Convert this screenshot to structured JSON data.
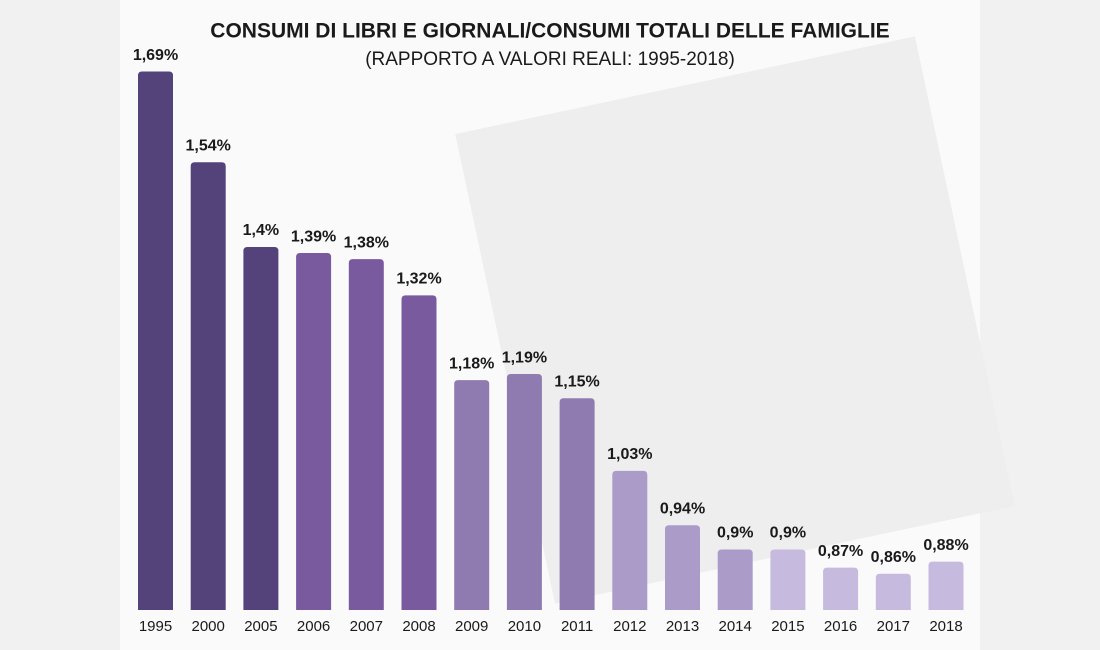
{
  "chart_data": {
    "type": "bar",
    "title": "CONSUMI DI LIBRI E GIORNALI/CONSUMI TOTALI DELLE FAMIGLIE",
    "subtitle": "(RAPPORTO A VALORI REALI: 1995-2018)",
    "categories": [
      "1995",
      "2000",
      "2005",
      "2006",
      "2007",
      "2008",
      "2009",
      "2010",
      "2011",
      "2012",
      "2013",
      "2014",
      "2015",
      "2016",
      "2017",
      "2018"
    ],
    "values": [
      1.69,
      1.54,
      1.4,
      1.39,
      1.38,
      1.32,
      1.18,
      1.19,
      1.15,
      1.03,
      0.94,
      0.9,
      0.9,
      0.87,
      0.86,
      0.88
    ],
    "value_labels": [
      "1,69%",
      "1,54%",
      "1,4%",
      "1,39%",
      "1,38%",
      "1,32%",
      "1,18%",
      "1,19%",
      "1,15%",
      "1,03%",
      "0,94%",
      "0,9%",
      "0,9%",
      "0,87%",
      "0,86%",
      "0,88%"
    ],
    "colors": [
      "#54437a",
      "#54437a",
      "#54437a",
      "#7a5a9e",
      "#7a5a9e",
      "#7a5a9e",
      "#8f7bb0",
      "#8f7bb0",
      "#8f7bb0",
      "#ab9bc8",
      "#ab9bc8",
      "#ab9bc8",
      "#c6bade",
      "#c6bade",
      "#c6bade",
      "#c6bade"
    ],
    "ylim": [
      0.8,
      1.7
    ]
  }
}
